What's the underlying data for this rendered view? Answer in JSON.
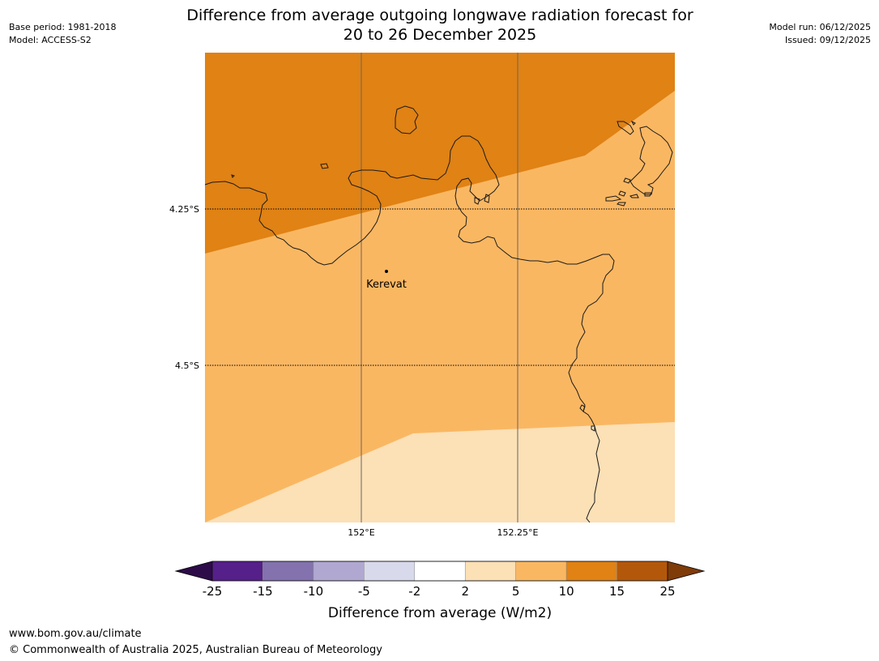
{
  "header": {
    "title_line1": "Difference from average outgoing longwave radiation forecast for",
    "title_line2": "20 to 26 December 2025",
    "base_period": "Base period: 1981-2018",
    "model": "Model: ACCESS-S2",
    "model_run": "Model run: 06/12/2025",
    "issued": "Issued: 09/12/2025"
  },
  "map": {
    "lat_labels": [
      "4.25°S",
      "4.5°S"
    ],
    "lon_labels": [
      "152°E",
      "152.25°E"
    ],
    "place": {
      "name": "Kerevat",
      "lat": -4.355,
      "lon": 152.04
    }
  },
  "legend": {
    "label": "Difference from average (W/m2)",
    "ticks": [
      "-25",
      "-15",
      "-10",
      "-5",
      "-2",
      "2",
      "5",
      "10",
      "15",
      "25"
    ],
    "colors": {
      "below_min": "#2d0b48",
      "bins": [
        "#55208a",
        "#8372ad",
        "#b0a8d1",
        "#d9d9ec",
        "#ffffff",
        "#fce0b6",
        "#fab762",
        "#e08214",
        "#b3580a"
      ],
      "above_max": "#7f3b08"
    }
  },
  "footer": {
    "url": "www.bom.gov.au/climate",
    "copyright": "© Commonwealth of Australia 2025, Australian Bureau of Meteorology"
  }
}
